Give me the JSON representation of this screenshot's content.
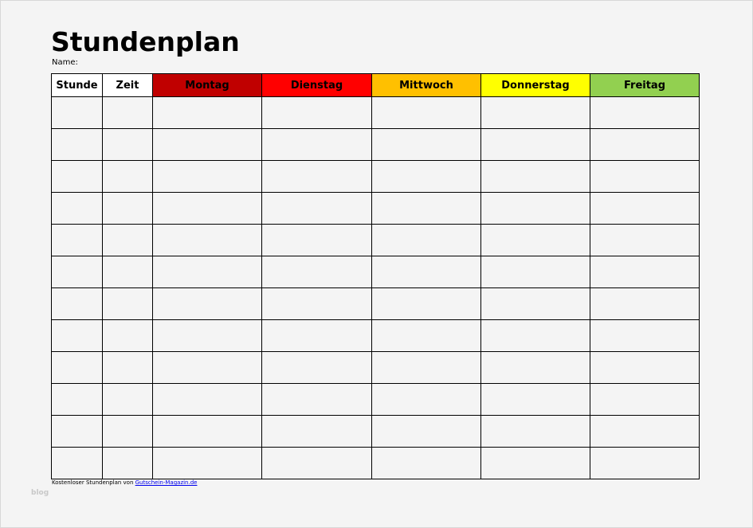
{
  "title": "Stundenplan",
  "name_label": "Name:",
  "table": {
    "headers": [
      {
        "label": "Stunde",
        "color": "#ffffff"
      },
      {
        "label": "Zeit",
        "color": "#ffffff"
      },
      {
        "label": "Montag",
        "color": "#c00000"
      },
      {
        "label": "Dienstag",
        "color": "#ff0000"
      },
      {
        "label": "Mittwoch",
        "color": "#ffc000"
      },
      {
        "label": "Donnerstag",
        "color": "#ffff00"
      },
      {
        "label": "Freitag",
        "color": "#92d050"
      }
    ],
    "row_count": 12
  },
  "footer": {
    "text": "Kostenloser Stundenplan von ",
    "link": "Gutschein-Magazin.de"
  },
  "watermark": "blog"
}
